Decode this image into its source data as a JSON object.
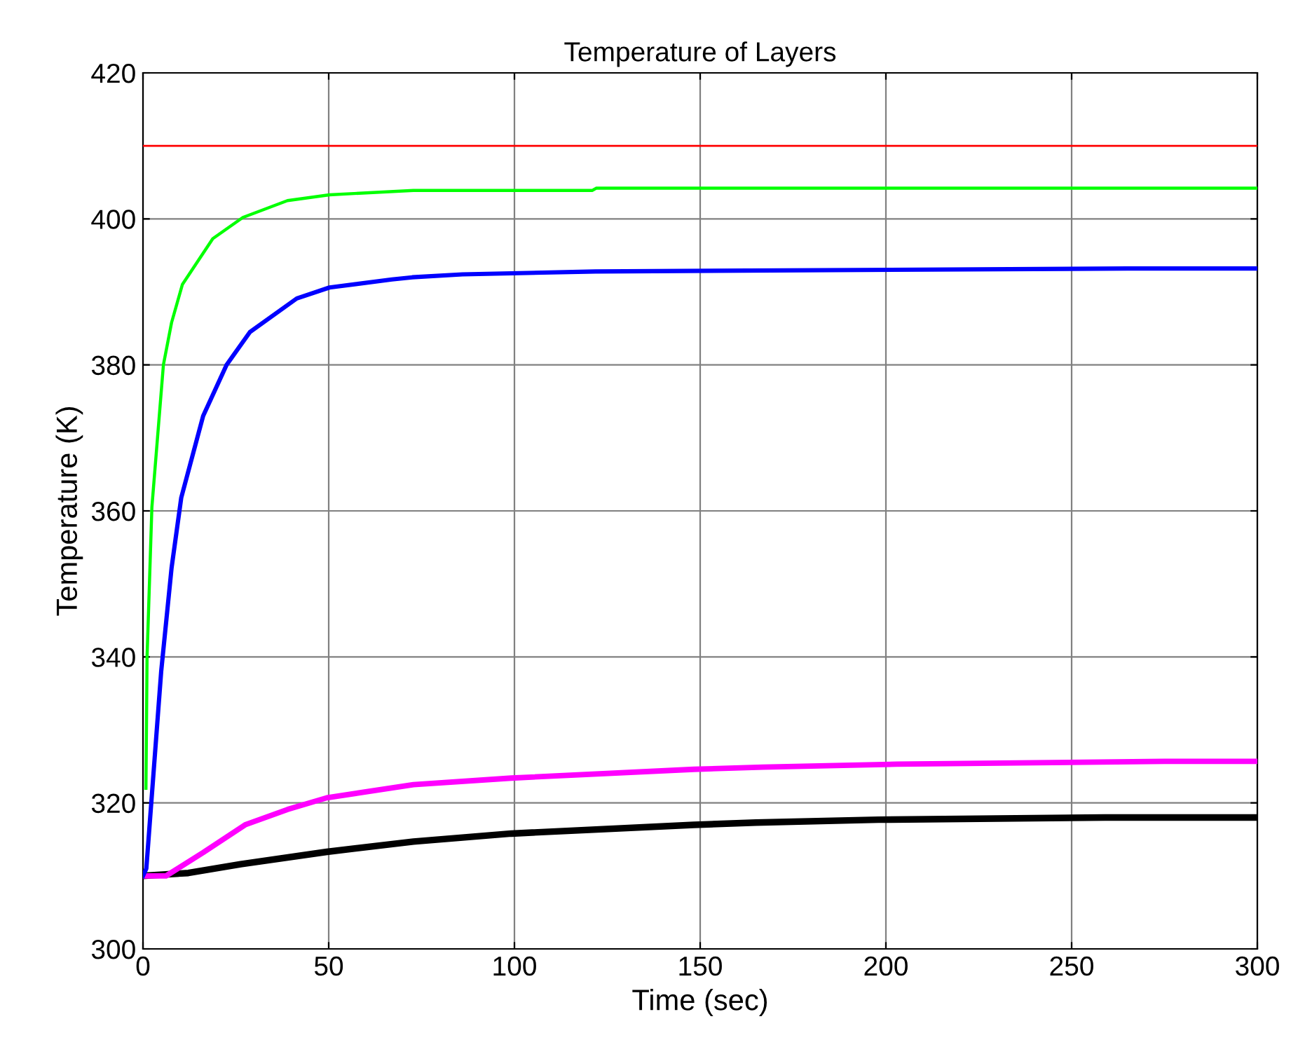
{
  "chart_data": {
    "type": "line",
    "title": "Temperature of Layers",
    "xlabel": "Time (sec)",
    "ylabel": "Temperature (K)",
    "xlim": [
      0,
      300
    ],
    "ylim": [
      300,
      420
    ],
    "xticks": [
      0,
      50,
      100,
      150,
      200,
      250,
      300
    ],
    "yticks": [
      300,
      320,
      340,
      360,
      380,
      400,
      420
    ],
    "grid": true,
    "line_style": "solid",
    "marker": "none",
    "series": [
      {
        "color": "#ff0000",
        "x": [
          0,
          300
        ],
        "values": [
          410,
          410
        ]
      },
      {
        "color": "#00ff00",
        "x": [
          0.8,
          1.1,
          2.4,
          5.5,
          7.7,
          10.6,
          18.8,
          26.9,
          38.9,
          50.2,
          72.8,
          121,
          122,
          300
        ],
        "values": [
          322,
          340,
          360.5,
          380,
          385.8,
          391,
          397.3,
          400.2,
          402.5,
          403.3,
          403.9,
          403.9,
          404.2,
          404.2
        ]
      },
      {
        "color": "#0000ff",
        "x": [
          0,
          0.9,
          4.9,
          7.7,
          10.3,
          16.2,
          22.5,
          28.8,
          41.4,
          50.2,
          67,
          72.5,
          86,
          121.8,
          265,
          300
        ],
        "values": [
          310,
          311,
          338,
          352.2,
          361.8,
          373,
          380,
          384.5,
          389.1,
          390.6,
          391.7,
          392,
          392.4,
          392.8,
          393.2,
          393.2
        ]
      },
      {
        "color": "#ff00ff",
        "x": [
          0,
          6.2,
          16.2,
          27.5,
          38.9,
          49.5,
          72.8,
          99.2,
          148.3,
          167,
          203,
          275,
          300
        ],
        "values": [
          310,
          310,
          313.2,
          317,
          319.1,
          320.7,
          322.5,
          323.4,
          324.6,
          324.9,
          325.3,
          325.7,
          325.7
        ]
      },
      {
        "color": "#000000",
        "x": [
          0,
          12.2,
          26.3,
          49.5,
          72.8,
          99.2,
          148.3,
          165,
          198,
          259,
          300
        ],
        "values": [
          310,
          310.4,
          311.6,
          313.3,
          314.7,
          315.8,
          317,
          317.3,
          317.7,
          318,
          318
        ]
      }
    ]
  }
}
